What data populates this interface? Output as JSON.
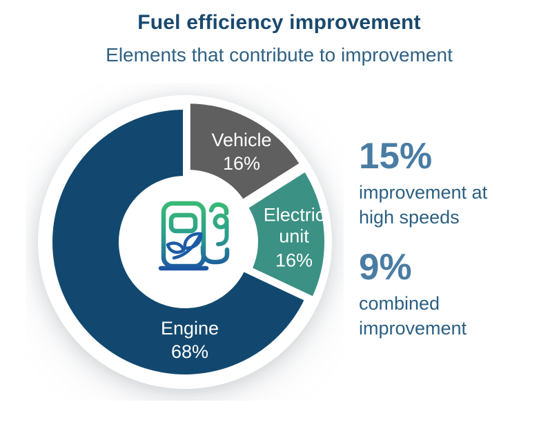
{
  "header": {
    "title": "Fuel efficiency improvement",
    "subtitle": "Elements that contribute to improvement"
  },
  "chart_data": {
    "type": "pie",
    "variant": "donut",
    "title": "Fuel efficiency improvement",
    "slices": [
      {
        "label": "Vehicle",
        "value": 16,
        "pct": "16%",
        "color": "#5F5F5F",
        "explode": 10
      },
      {
        "label": "Electric unit",
        "value": 16,
        "pct": "16%",
        "color": "#3B9183",
        "explode": 10
      },
      {
        "label": "Engine",
        "value": 68,
        "pct": "68%",
        "color": "#12486F",
        "explode": 0
      }
    ],
    "start_angle_deg": 0,
    "direction": "clockwise",
    "outer_radius": 195,
    "inner_radius": 93,
    "gap_stroke_px": 6,
    "center_icon": "eco-fuel-pump-icon",
    "legend": "labels-inside-slices"
  },
  "stats": [
    {
      "number": "15%",
      "text": "improvement at high speeds"
    },
    {
      "number": "9%",
      "text": "combined improvement"
    }
  ],
  "colors": {
    "title": "#19496E",
    "subtitle": "#2E6183",
    "stat_number": "#4A7CA3",
    "stat_text": "#2B5F82",
    "slice_label_text": "#FFFFFF",
    "background": "#FFFFFF",
    "icon_gradient_top": "#39BB73",
    "icon_gradient_bottom": "#1B53A2"
  }
}
